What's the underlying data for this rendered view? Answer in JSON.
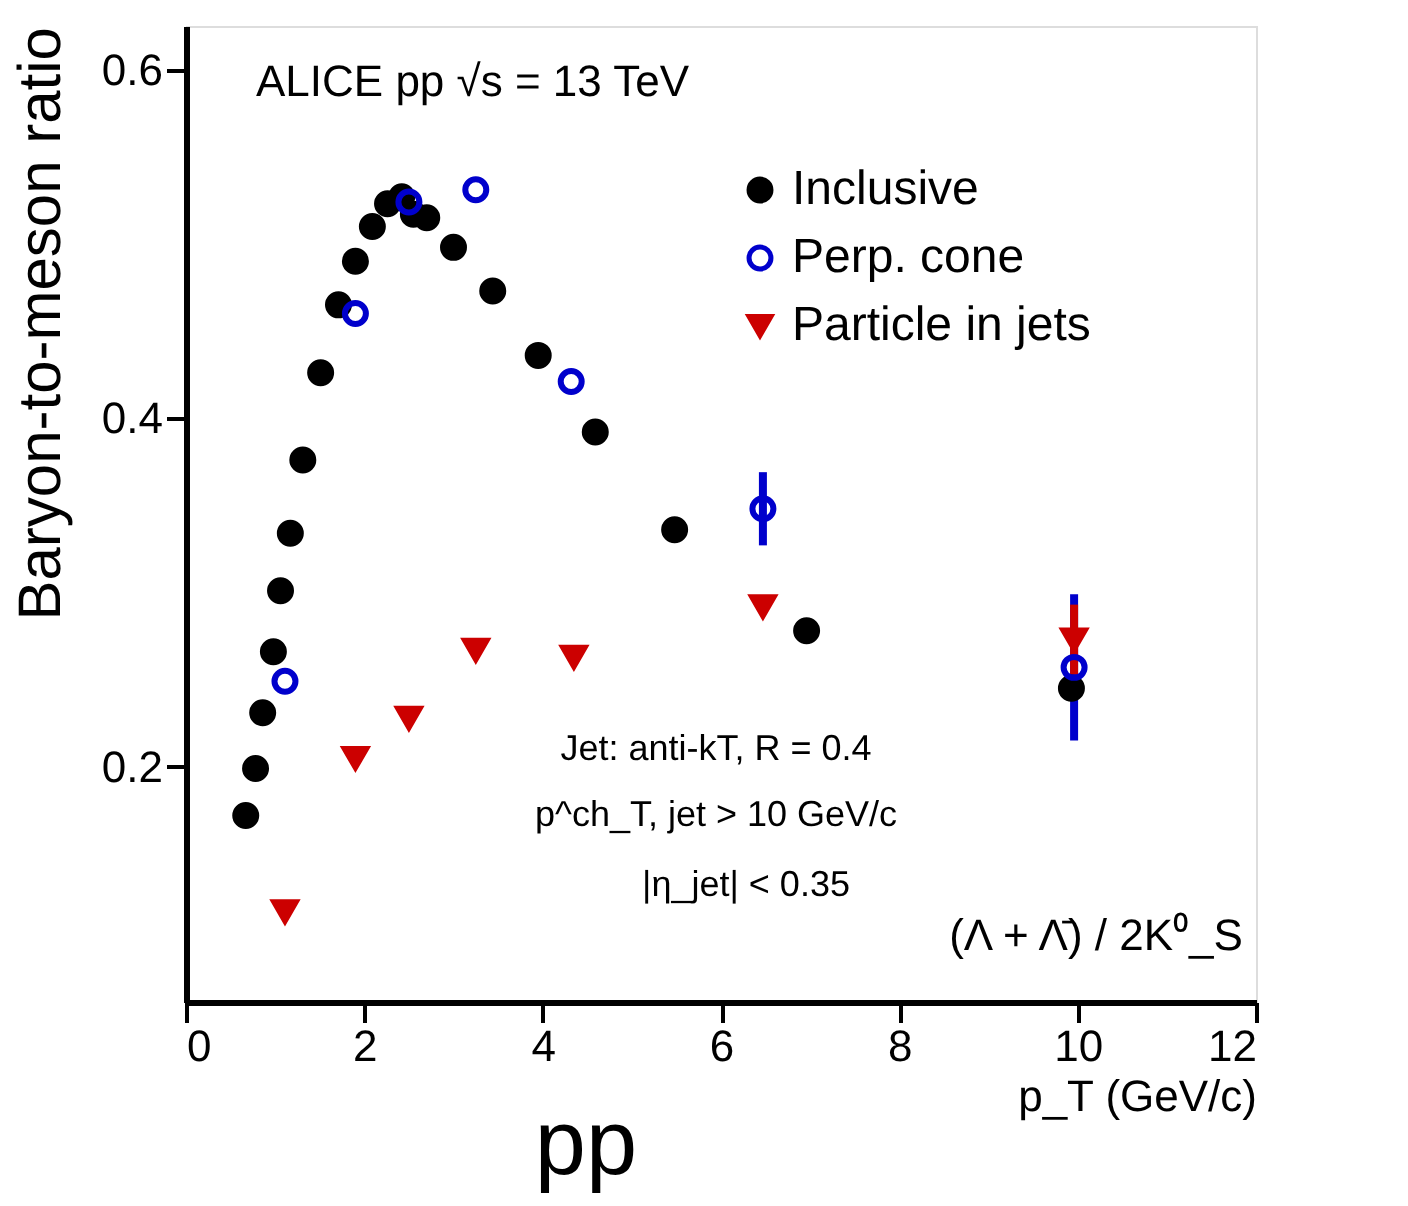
{
  "chart_data": {
    "type": "scatter",
    "ylabel": "Baryon-to-meson ratio",
    "xlabel": "p_T (GeV/c)",
    "xlim": [
      0,
      12
    ],
    "xticks": [
      0,
      2,
      4,
      6,
      8,
      10,
      12
    ],
    "ylim": [
      0.065,
      0.625
    ],
    "yticks": [
      0.2,
      0.4,
      0.6
    ],
    "grid": false,
    "legend": "top right",
    "series": [
      {
        "name": "Inclusive",
        "color": "#000000",
        "marker": "circle",
        "x": [
          0.67,
          0.78,
          0.86,
          0.98,
          1.06,
          1.17,
          1.31,
          1.51,
          1.71,
          1.9,
          2.09,
          2.26,
          2.42,
          2.55,
          2.7,
          3.0,
          3.44,
          3.95,
          4.59,
          5.48,
          6.96,
          9.93
        ],
        "values": [
          0.172,
          0.199,
          0.231,
          0.266,
          0.301,
          0.334,
          0.376,
          0.426,
          0.465,
          0.49,
          0.51,
          0.523,
          0.527,
          0.517,
          0.515,
          0.498,
          0.473,
          0.436,
          0.392,
          0.336,
          0.278,
          0.245
        ]
      },
      {
        "name": "Perp. cone",
        "color": "#0000cc",
        "marker": "open circle",
        "x": [
          1.11,
          1.9,
          2.5,
          3.25,
          4.32,
          6.47,
          9.96
        ],
        "values": [
          0.249,
          0.46,
          0.524,
          0.531,
          0.421,
          0.348,
          0.257
        ],
        "errors": [
          null,
          null,
          null,
          null,
          null,
          0.021,
          0.042
        ]
      },
      {
        "name": "Particle in jets",
        "color": "#cc0000",
        "marker": "triangle-down",
        "x": [
          1.11,
          1.9,
          2.5,
          3.25,
          4.35,
          6.47,
          9.96
        ],
        "values": [
          0.117,
          0.205,
          0.228,
          0.267,
          0.263,
          0.292,
          0.273
        ],
        "errors": [
          null,
          null,
          null,
          null,
          null,
          null,
          0.02
        ]
      }
    ],
    "annotations": [
      "ALICE pp √s = 13 TeV",
      "Jet: anti-kT, R = 0.4",
      "p^ch_T, jet > 10 GeV/c",
      "|η_jet| < 0.35",
      "(Λ + Λ̄) / 2K⁰_S",
      "pp"
    ]
  }
}
